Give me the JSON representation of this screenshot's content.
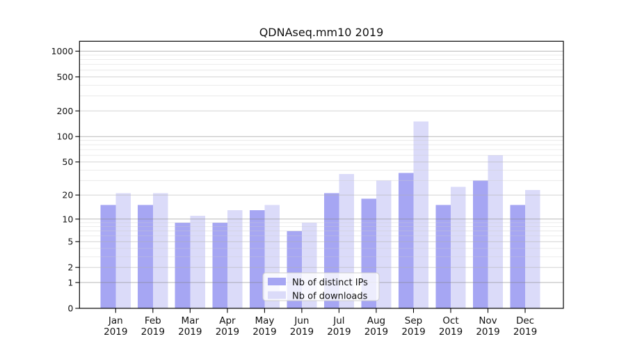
{
  "chart_data": {
    "type": "bar",
    "title": "QDNAseq.mm10 2019",
    "categories": [
      "Jan",
      "Feb",
      "Mar",
      "Apr",
      "May",
      "Jun",
      "Jul",
      "Aug",
      "Sep",
      "Oct",
      "Nov",
      "Dec"
    ],
    "category_year_label": "2019",
    "series": [
      {
        "name": "Nb of distinct IPs",
        "color": "#a6a6f3",
        "values": [
          15,
          15,
          9,
          9,
          13,
          7,
          21,
          18,
          37,
          15,
          30,
          15
        ]
      },
      {
        "name": "Nb of downloads",
        "color": "#dbdbf9",
        "values": [
          21,
          21,
          11,
          13,
          15,
          9,
          36,
          30,
          150,
          25,
          60,
          23
        ]
      }
    ],
    "xlabel": "",
    "ylabel": "",
    "y_ticks": [
      0,
      1,
      2,
      5,
      10,
      20,
      50,
      100,
      200,
      500,
      1000
    ],
    "y_minor_gridlines": [
      3,
      4,
      6,
      7,
      8,
      9,
      30,
      40,
      60,
      70,
      80,
      90,
      300,
      400,
      600,
      700,
      800,
      900
    ],
    "ylim": [
      0,
      1000
    ],
    "scale": "log1p",
    "grid": true,
    "gridlines_over_bars": true,
    "legend_position": "lower center inside plot"
  }
}
